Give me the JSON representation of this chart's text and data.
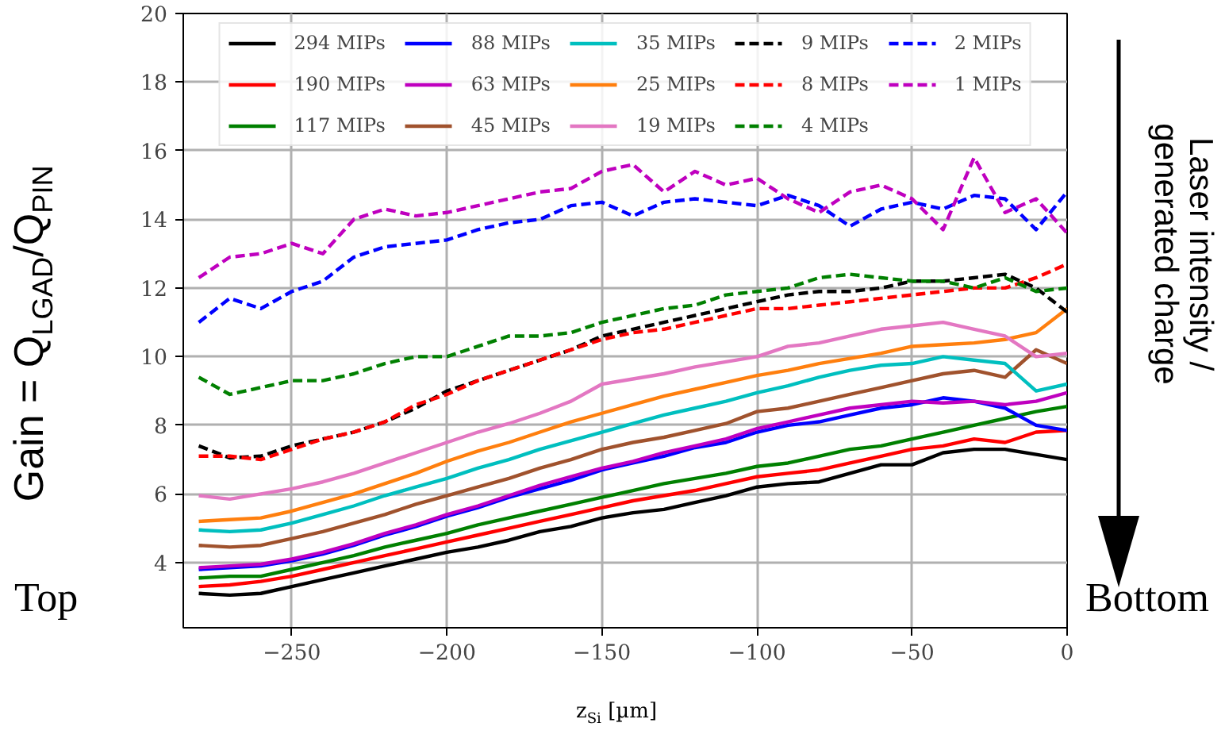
{
  "chart_data": {
    "type": "line",
    "xlabel": "z$_{Si}$ [µm]",
    "ylabel": "Gain = Q$_{LGAD}$/Q$_{PIN}$",
    "annotations": [
      "Top",
      "Bottom",
      "Laser intensity /\ngenerated charge"
    ],
    "x": [
      -280,
      -270,
      -260,
      -250,
      -240,
      -230,
      -220,
      -210,
      -200,
      -190,
      -180,
      -170,
      -160,
      -150,
      -140,
      -130,
      -120,
      -110,
      -100,
      -90,
      -80,
      -70,
      -60,
      -50,
      -40,
      -30,
      -20,
      -10,
      0
    ],
    "xlim": [
      -285,
      0
    ],
    "ylim": [
      2.1,
      20
    ],
    "xticks": [
      {
        "value": -250,
        "label": "−250"
      },
      {
        "value": -200,
        "label": "−200"
      },
      {
        "value": -150,
        "label": "−150"
      },
      {
        "value": -100,
        "label": "−100"
      },
      {
        "value": -50,
        "label": "−50"
      },
      0
    ],
    "yticks": [
      4,
      6,
      8,
      10,
      12,
      14,
      16,
      18,
      20
    ],
    "grid": true,
    "legend": "top",
    "series": [
      {
        "name": "294 MIPs",
        "color": "#000000",
        "line_style": "solid",
        "values": [
          3.1,
          3.05,
          3.1,
          3.3,
          3.5,
          3.7,
          3.9,
          4.1,
          4.3,
          4.45,
          4.65,
          4.9,
          5.05,
          5.3,
          5.45,
          5.55,
          5.75,
          5.95,
          6.2,
          6.3,
          6.35,
          6.6,
          6.85,
          6.85,
          7.2,
          7.3,
          7.3,
          7.15,
          7.0
        ]
      },
      {
        "name": "190 MIPs",
        "color": "#ff0000",
        "line_style": "solid",
        "values": [
          3.3,
          3.35,
          3.45,
          3.6,
          3.8,
          4.0,
          4.2,
          4.4,
          4.6,
          4.8,
          5.0,
          5.2,
          5.4,
          5.6,
          5.8,
          5.95,
          6.1,
          6.3,
          6.5,
          6.6,
          6.7,
          6.9,
          7.1,
          7.3,
          7.4,
          7.6,
          7.5,
          7.8,
          7.85
        ]
      },
      {
        "name": "117 MIPs",
        "color": "#008000",
        "line_style": "solid",
        "values": [
          3.55,
          3.6,
          3.6,
          3.8,
          4.0,
          4.2,
          4.45,
          4.65,
          4.85,
          5.1,
          5.3,
          5.5,
          5.7,
          5.9,
          6.1,
          6.3,
          6.45,
          6.6,
          6.8,
          6.9,
          7.1,
          7.3,
          7.4,
          7.6,
          7.8,
          8.0,
          8.2,
          8.4,
          8.55
        ]
      },
      {
        "name": "88 MIPs",
        "color": "#0000ff",
        "line_style": "solid",
        "values": [
          3.8,
          3.85,
          3.9,
          4.05,
          4.25,
          4.5,
          4.8,
          5.05,
          5.35,
          5.6,
          5.9,
          6.15,
          6.4,
          6.7,
          6.9,
          7.1,
          7.35,
          7.5,
          7.8,
          8.0,
          8.1,
          8.3,
          8.5,
          8.6,
          8.8,
          8.7,
          8.5,
          8.0,
          7.85
        ]
      },
      {
        "name": "63 MIPs",
        "color": "#bf00bf",
        "line_style": "solid",
        "values": [
          3.85,
          3.9,
          3.95,
          4.1,
          4.3,
          4.55,
          4.85,
          5.1,
          5.4,
          5.65,
          5.95,
          6.25,
          6.5,
          6.75,
          6.95,
          7.2,
          7.4,
          7.6,
          7.9,
          8.1,
          8.3,
          8.5,
          8.6,
          8.7,
          8.65,
          8.7,
          8.6,
          8.7,
          8.95
        ]
      },
      {
        "name": "45 MIPs",
        "color": "#a0522d",
        "line_style": "solid",
        "values": [
          4.5,
          4.45,
          4.5,
          4.7,
          4.9,
          5.15,
          5.4,
          5.7,
          5.95,
          6.2,
          6.45,
          6.75,
          7.0,
          7.3,
          7.5,
          7.65,
          7.85,
          8.05,
          8.4,
          8.5,
          8.7,
          8.9,
          9.1,
          9.3,
          9.5,
          9.6,
          9.4,
          10.2,
          9.8
        ]
      },
      {
        "name": "35 MIPs",
        "color": "#00bfbf",
        "line_style": "solid",
        "values": [
          4.95,
          4.9,
          4.95,
          5.15,
          5.4,
          5.65,
          5.95,
          6.2,
          6.45,
          6.75,
          7.0,
          7.3,
          7.55,
          7.8,
          8.05,
          8.3,
          8.5,
          8.7,
          8.95,
          9.15,
          9.4,
          9.6,
          9.75,
          9.8,
          10.0,
          9.9,
          9.8,
          9.0,
          9.2
        ]
      },
      {
        "name": "25 MIPs",
        "color": "#ff7f0e",
        "line_style": "solid",
        "values": [
          5.2,
          5.25,
          5.3,
          5.5,
          5.75,
          6.0,
          6.3,
          6.6,
          6.95,
          7.25,
          7.5,
          7.8,
          8.1,
          8.35,
          8.6,
          8.85,
          9.05,
          9.25,
          9.45,
          9.6,
          9.8,
          9.95,
          10.1,
          10.3,
          10.35,
          10.4,
          10.5,
          10.7,
          11.4
        ]
      },
      {
        "name": "19 MIPs",
        "color": "#e377c2",
        "line_style": "solid",
        "values": [
          5.95,
          5.85,
          6.0,
          6.15,
          6.35,
          6.6,
          6.9,
          7.2,
          7.5,
          7.8,
          8.05,
          8.35,
          8.7,
          9.2,
          9.35,
          9.5,
          9.7,
          9.85,
          10.0,
          10.3,
          10.4,
          10.6,
          10.8,
          10.9,
          11.0,
          10.8,
          10.6,
          10.0,
          10.1
        ]
      },
      {
        "name": "9 MIPs",
        "color": "#000000",
        "line_style": "dashed",
        "values": [
          7.4,
          7.05,
          7.1,
          7.4,
          7.6,
          7.8,
          8.1,
          8.5,
          9.0,
          9.3,
          9.6,
          9.9,
          10.2,
          10.6,
          10.8,
          11.0,
          11.2,
          11.4,
          11.6,
          11.8,
          11.9,
          11.9,
          12.0,
          12.2,
          12.2,
          12.3,
          12.4,
          12.0,
          11.3
        ]
      },
      {
        "name": "8 MIPs",
        "color": "#ff0000",
        "line_style": "dashed",
        "values": [
          7.1,
          7.1,
          7.0,
          7.3,
          7.6,
          7.8,
          8.1,
          8.6,
          8.9,
          9.3,
          9.6,
          9.9,
          10.2,
          10.5,
          10.7,
          10.8,
          11.0,
          11.2,
          11.4,
          11.4,
          11.5,
          11.6,
          11.7,
          11.8,
          11.9,
          12.0,
          12.0,
          12.3,
          12.7
        ]
      },
      {
        "name": "4 MIPs",
        "color": "#008000",
        "line_style": "dashed",
        "values": [
          9.4,
          8.9,
          9.1,
          9.3,
          9.3,
          9.5,
          9.8,
          10.0,
          10.0,
          10.3,
          10.6,
          10.6,
          10.7,
          11.0,
          11.2,
          11.4,
          11.5,
          11.8,
          11.9,
          12.0,
          12.3,
          12.4,
          12.3,
          12.2,
          12.2,
          12.0,
          12.3,
          11.9,
          12.0
        ]
      },
      {
        "name": "2 MIPs",
        "color": "#0000ff",
        "line_style": "dashed",
        "values": [
          11.0,
          11.7,
          11.4,
          11.9,
          12.2,
          12.9,
          13.2,
          13.3,
          13.4,
          13.7,
          13.9,
          14.0,
          14.4,
          14.5,
          14.1,
          14.5,
          14.6,
          14.5,
          14.4,
          14.7,
          14.4,
          13.8,
          14.3,
          14.5,
          14.3,
          14.7,
          14.6,
          13.7,
          14.8
        ]
      },
      {
        "name": "1 MIPs",
        "color": "#bf00bf",
        "line_style": "dashed",
        "values": [
          12.3,
          12.9,
          13.0,
          13.3,
          13.0,
          14.0,
          14.3,
          14.1,
          14.2,
          14.4,
          14.6,
          14.8,
          14.9,
          15.4,
          15.6,
          14.8,
          15.4,
          15.0,
          15.2,
          14.6,
          14.2,
          14.8,
          15.0,
          14.6,
          13.7,
          15.8,
          14.2,
          14.6,
          13.6
        ]
      }
    ]
  }
}
